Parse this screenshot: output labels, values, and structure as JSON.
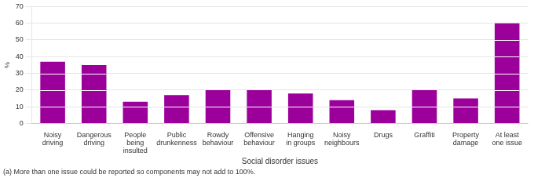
{
  "chart_data": {
    "type": "bar",
    "categories": [
      "Noisy\ndriving",
      "Dangerous\ndriving",
      "People\nbeing\ninsulted",
      "Public\ndrunkenness",
      "Rowdy\nbehaviour",
      "Offensive\nbehaviour",
      "Hanging\nin groups",
      "Noisy\nneighbours",
      "Drugs",
      "Graffiti",
      "Property\ndamage",
      "At least\none issue"
    ],
    "values": [
      37,
      35,
      13,
      17,
      20,
      20,
      18,
      14,
      8,
      20,
      15,
      60
    ],
    "segment_lines": [
      [
        10,
        20,
        30
      ],
      [
        10,
        20,
        30
      ],
      [
        10
      ],
      [
        10
      ],
      [
        10
      ],
      [
        10
      ],
      [
        10
      ],
      [
        10
      ],
      [],
      [
        10
      ],
      [
        10
      ],
      [
        10,
        20,
        30,
        40,
        50
      ]
    ],
    "color": "#9b009b",
    "xlabel": "Social disorder issues",
    "ylabel": "%",
    "footnote": "(a) More than one issue could be reported so components may not add to 100%.",
    "ylim": [
      0,
      70
    ],
    "yticks": [
      0,
      10,
      20,
      30,
      40,
      50,
      60,
      70
    ],
    "grid": true
  }
}
